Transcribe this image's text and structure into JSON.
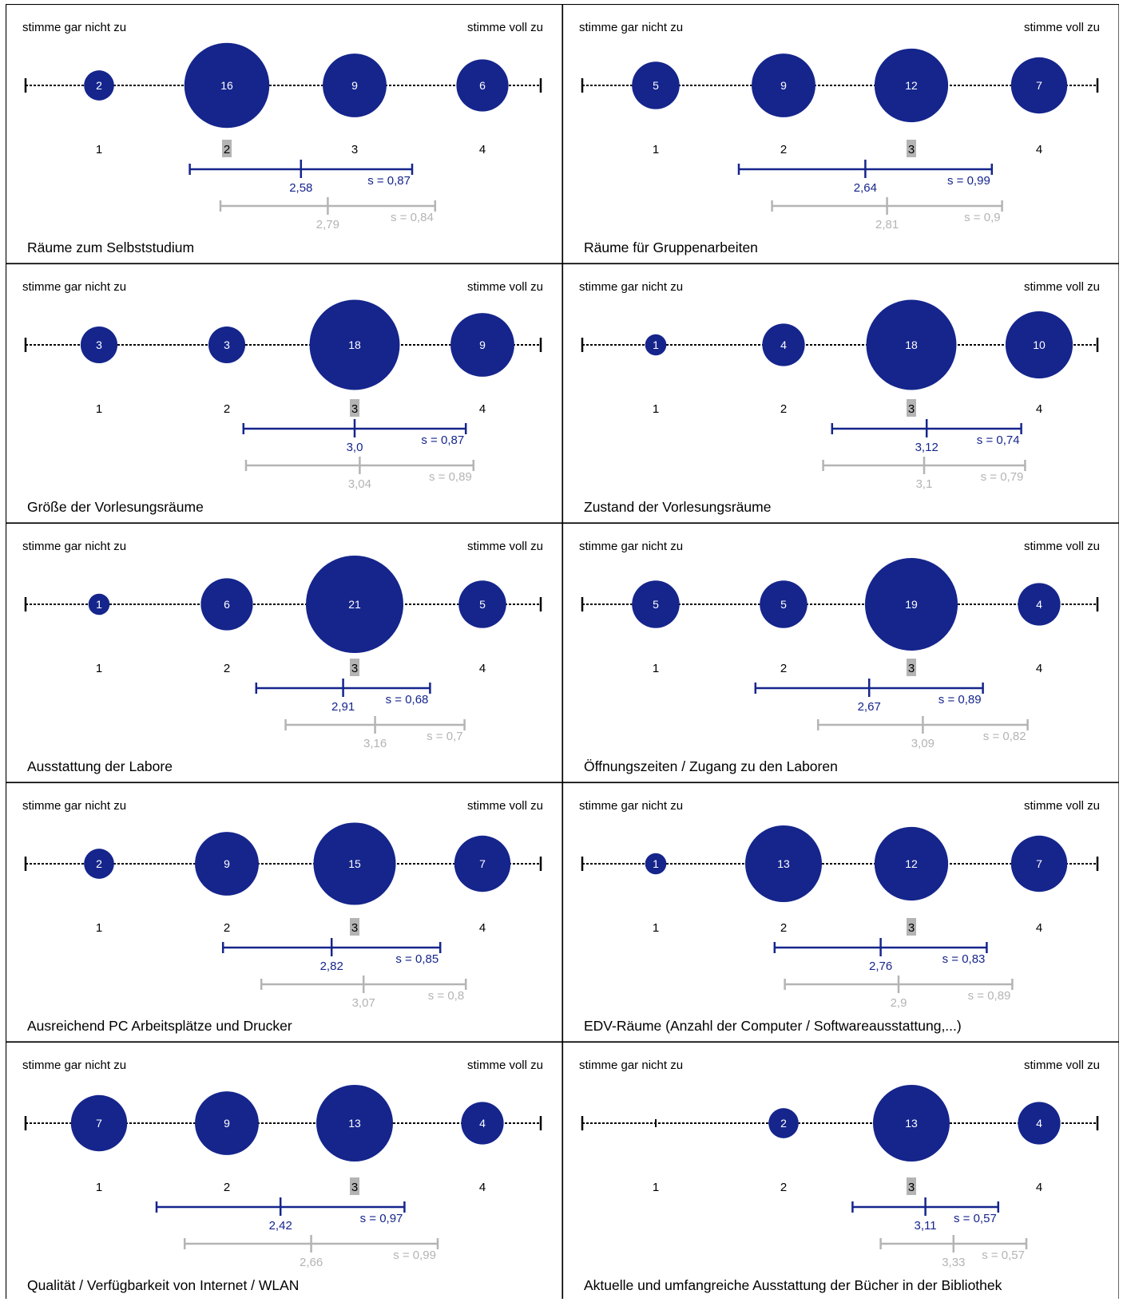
{
  "chart_data": [
    {
      "type": "bubble-scale",
      "title": "Räume zum Selbststudium",
      "scale_low_label": "stimme gar nicht zu",
      "scale_high_label": "stimme voll zu",
      "categories": [
        "1",
        "2",
        "3",
        "4"
      ],
      "counts": [
        2,
        16,
        9,
        6
      ],
      "median": 2,
      "mean": 2.58,
      "mean_label": "2,58",
      "sd": 0.87,
      "sd_label": "s = 0,87",
      "comparison_mean": 2.79,
      "comparison_mean_label": "2,79",
      "comparison_sd": 0.84,
      "comparison_sd_label": "s = 0,84"
    },
    {
      "type": "bubble-scale",
      "title": "Räume für Gruppenarbeiten",
      "scale_low_label": "stimme gar nicht zu",
      "scale_high_label": "stimme voll zu",
      "categories": [
        "1",
        "2",
        "3",
        "4"
      ],
      "counts": [
        5,
        9,
        12,
        7
      ],
      "median": 3,
      "mean": 2.64,
      "mean_label": "2,64",
      "sd": 0.99,
      "sd_label": "s = 0,99",
      "comparison_mean": 2.81,
      "comparison_mean_label": "2,81",
      "comparison_sd": 0.9,
      "comparison_sd_label": "s = 0,9"
    },
    {
      "type": "bubble-scale",
      "title": "Größe der Vorlesungsräume",
      "scale_low_label": "stimme gar nicht zu",
      "scale_high_label": "stimme voll zu",
      "categories": [
        "1",
        "2",
        "3",
        "4"
      ],
      "counts": [
        3,
        3,
        18,
        9
      ],
      "median": 3,
      "mean": 3.0,
      "mean_label": "3,0",
      "sd": 0.87,
      "sd_label": "s = 0,87",
      "comparison_mean": 3.04,
      "comparison_mean_label": "3,04",
      "comparison_sd": 0.89,
      "comparison_sd_label": "s = 0,89"
    },
    {
      "type": "bubble-scale",
      "title": "Zustand der Vorlesungsräume",
      "scale_low_label": "stimme gar nicht zu",
      "scale_high_label": "stimme voll zu",
      "categories": [
        "1",
        "2",
        "3",
        "4"
      ],
      "counts": [
        1,
        4,
        18,
        10
      ],
      "median": 3,
      "mean": 3.12,
      "mean_label": "3,12",
      "sd": 0.74,
      "sd_label": "s = 0,74",
      "comparison_mean": 3.1,
      "comparison_mean_label": "3,1",
      "comparison_sd": 0.79,
      "comparison_sd_label": "s = 0,79"
    },
    {
      "type": "bubble-scale",
      "title": "Ausstattung der Labore",
      "scale_low_label": "stimme gar nicht zu",
      "scale_high_label": "stimme voll zu",
      "categories": [
        "1",
        "2",
        "3",
        "4"
      ],
      "counts": [
        1,
        6,
        21,
        5
      ],
      "median": 3,
      "mean": 2.91,
      "mean_label": "2,91",
      "sd": 0.68,
      "sd_label": "s = 0,68",
      "comparison_mean": 3.16,
      "comparison_mean_label": "3,16",
      "comparison_sd": 0.7,
      "comparison_sd_label": "s = 0,7"
    },
    {
      "type": "bubble-scale",
      "title": "Öffnungszeiten / Zugang zu den Laboren",
      "scale_low_label": "stimme gar nicht zu",
      "scale_high_label": "stimme voll zu",
      "categories": [
        "1",
        "2",
        "3",
        "4"
      ],
      "counts": [
        5,
        5,
        19,
        4
      ],
      "median": 3,
      "mean": 2.67,
      "mean_label": "2,67",
      "sd": 0.89,
      "sd_label": "s = 0,89",
      "comparison_mean": 3.09,
      "comparison_mean_label": "3,09",
      "comparison_sd": 0.82,
      "comparison_sd_label": "s = 0,82"
    },
    {
      "type": "bubble-scale",
      "title": "Ausreichend PC Arbeitsplätze und Drucker",
      "scale_low_label": "stimme gar nicht zu",
      "scale_high_label": "stimme voll zu",
      "categories": [
        "1",
        "2",
        "3",
        "4"
      ],
      "counts": [
        2,
        9,
        15,
        7
      ],
      "median": 3,
      "mean": 2.82,
      "mean_label": "2,82",
      "sd": 0.85,
      "sd_label": "s = 0,85",
      "comparison_mean": 3.07,
      "comparison_mean_label": "3,07",
      "comparison_sd": 0.8,
      "comparison_sd_label": "s = 0,8"
    },
    {
      "type": "bubble-scale",
      "title": "EDV-Räume (Anzahl der Computer / Softwareausstattung,...)",
      "scale_low_label": "stimme gar nicht zu",
      "scale_high_label": "stimme voll zu",
      "categories": [
        "1",
        "2",
        "3",
        "4"
      ],
      "counts": [
        1,
        13,
        12,
        7
      ],
      "median": 3,
      "mean": 2.76,
      "mean_label": "2,76",
      "sd": 0.83,
      "sd_label": "s = 0,83",
      "comparison_mean": 2.9,
      "comparison_mean_label": "2,9",
      "comparison_sd": 0.89,
      "comparison_sd_label": "s = 0,89"
    },
    {
      "type": "bubble-scale",
      "title": "Qualität / Verfügbarkeit von Internet / WLAN",
      "scale_low_label": "stimme gar nicht zu",
      "scale_high_label": "stimme voll zu",
      "categories": [
        "1",
        "2",
        "3",
        "4"
      ],
      "counts": [
        7,
        9,
        13,
        4
      ],
      "median": 3,
      "mean": 2.42,
      "mean_label": "2,42",
      "sd": 0.97,
      "sd_label": "s = 0,97",
      "comparison_mean": 2.66,
      "comparison_mean_label": "2,66",
      "comparison_sd": 0.99,
      "comparison_sd_label": "s = 0,99"
    },
    {
      "type": "bubble-scale",
      "title": "Aktuelle und umfangreiche Ausstattung der Bücher in der Bibliothek",
      "scale_low_label": "stimme gar nicht zu",
      "scale_high_label": "stimme voll zu",
      "categories": [
        "1",
        "2",
        "3",
        "4"
      ],
      "counts": [
        0,
        2,
        13,
        4
      ],
      "median": 3,
      "mean": 3.11,
      "mean_label": "3,11",
      "sd": 0.57,
      "sd_label": "s = 0,57",
      "comparison_mean": 3.33,
      "comparison_mean_label": "3,33",
      "comparison_sd": 0.57,
      "comparison_sd_label": "s = 0,57"
    }
  ],
  "colors": {
    "bubble": "#15258c",
    "mean_line": "#15258c",
    "comparison_line": "#b4b4b4",
    "median_highlight": "#b4b4b4",
    "border": "#000000"
  }
}
